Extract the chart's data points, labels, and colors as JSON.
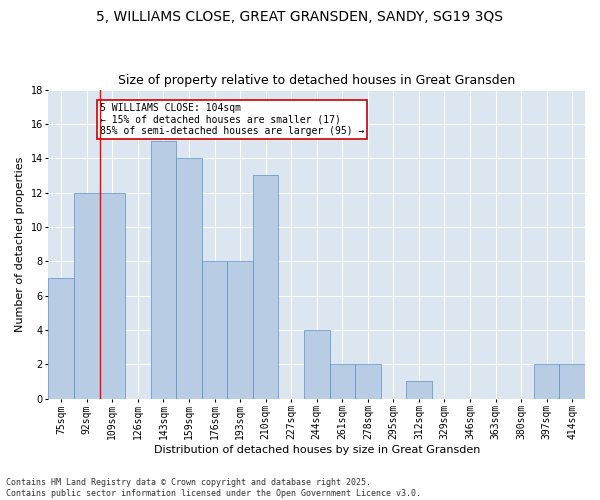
{
  "title": "5, WILLIAMS CLOSE, GREAT GRANSDEN, SANDY, SG19 3QS",
  "subtitle": "Size of property relative to detached houses in Great Gransden",
  "xlabel": "Distribution of detached houses by size in Great Gransden",
  "ylabel": "Number of detached properties",
  "categories": [
    "75sqm",
    "92sqm",
    "109sqm",
    "126sqm",
    "143sqm",
    "159sqm",
    "176sqm",
    "193sqm",
    "210sqm",
    "227sqm",
    "244sqm",
    "261sqm",
    "278sqm",
    "295sqm",
    "312sqm",
    "329sqm",
    "346sqm",
    "363sqm",
    "380sqm",
    "397sqm",
    "414sqm"
  ],
  "values": [
    7,
    12,
    12,
    0,
    15,
    14,
    8,
    8,
    13,
    0,
    4,
    2,
    2,
    0,
    1,
    0,
    0,
    0,
    0,
    2,
    2
  ],
  "bar_color": "#b8cce4",
  "bar_edge_color": "#5b8fc9",
  "background_color": "#dce6f1",
  "ylim": [
    0,
    18
  ],
  "yticks": [
    0,
    2,
    4,
    6,
    8,
    10,
    12,
    14,
    16,
    18
  ],
  "vline_x": 1.5,
  "annotation_text": "5 WILLIAMS CLOSE: 104sqm\n← 15% of detached houses are smaller (17)\n85% of semi-detached houses are larger (95) →",
  "annotation_box_color": "#ffffff",
  "annotation_box_edge_color": "#cc0000",
  "footnote": "Contains HM Land Registry data © Crown copyright and database right 2025.\nContains public sector information licensed under the Open Government Licence v3.0.",
  "title_fontsize": 10,
  "subtitle_fontsize": 9,
  "axis_label_fontsize": 8,
  "tick_fontsize": 7,
  "annot_fontsize": 7,
  "footnote_fontsize": 6
}
